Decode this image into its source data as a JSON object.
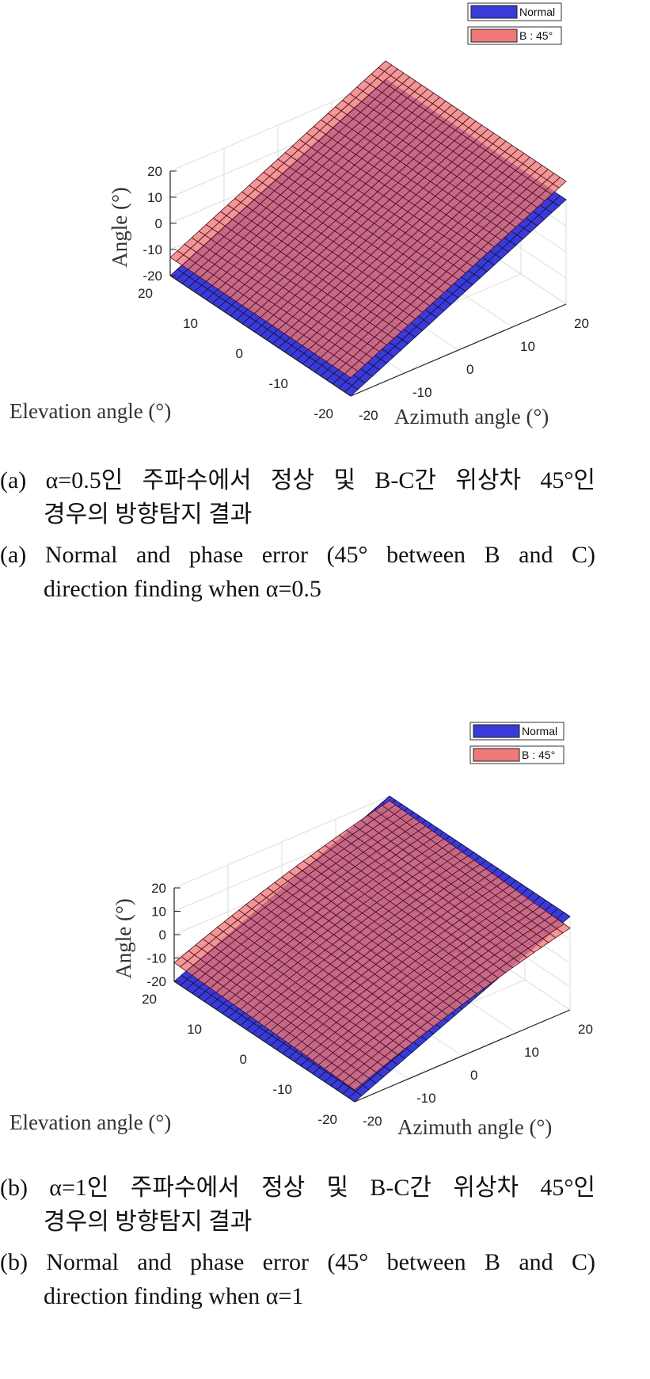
{
  "figure": {
    "chart_data": [
      {
        "type": "surface3d",
        "panel": "a",
        "zlabel": "Angle (°)",
        "xlabel": "Azimuth angle (°)",
        "ylabel": "Elevation angle (°)",
        "zticks": [
          "20",
          "10",
          "0",
          "-10",
          "-20"
        ],
        "xticks": [
          "-20",
          "-10",
          "0",
          "10",
          "20"
        ],
        "yticks": [
          "20",
          "10",
          "0",
          "-10",
          "-20"
        ],
        "xlim": [
          -20,
          20
        ],
        "ylim": [
          -20,
          20
        ],
        "zlim": [
          -20,
          20
        ],
        "grid": true,
        "legend_position": "top-right",
        "series": [
          {
            "name": "Normal",
            "color": "#3a3ad8",
            "model": "angle = azimuth",
            "z_at_corners": {
              "az-20_el20": -20,
              "az20_el20": 20,
              "az-20_el-20": -20,
              "az20_el-20": 20
            }
          },
          {
            "name": "B : 45°",
            "color": "#ef7878",
            "model": "angle ≈ azimuth + 7",
            "z_at_corners": {
              "az-20_el20": -13,
              "az20_el20": 27,
              "az-20_el-20": -13,
              "az20_el-20": 27
            }
          }
        ],
        "caption_ko": {
          "label": "(a)",
          "line1": "α=0.5인 주파수에서 정상 및 B-C간 위상차 45°인",
          "line2": "경우의 방향탐지 결과"
        },
        "caption_en": {
          "label": "(a)",
          "line1": "Normal and phase error (45° between B and C)",
          "line2": "direction finding when α=0.5"
        }
      },
      {
        "type": "surface3d",
        "panel": "b",
        "zlabel": "Angle (°)",
        "xlabel": "Azimuth angle (°)",
        "ylabel": "Elevation angle (°)",
        "zticks": [
          "20",
          "10",
          "0",
          "-10",
          "-20"
        ],
        "xticks": [
          "-20",
          "-10",
          "0",
          "10",
          "20"
        ],
        "yticks": [
          "20",
          "10",
          "0",
          "-10",
          "-20"
        ],
        "xlim": [
          -20,
          20
        ],
        "ylim": [
          -20,
          20
        ],
        "zlim": [
          -20,
          20
        ],
        "grid": true,
        "legend_position": "top-right",
        "series": [
          {
            "name": "Normal",
            "color": "#3a3ad8",
            "model": "angle = azimuth",
            "z_at_corners": {
              "az-20_el20": -20,
              "az20_el20": 20,
              "az-20_el-20": -20,
              "az20_el-20": 20
            }
          },
          {
            "name": "B : 45°",
            "color": "#ef7878",
            "model": "curved surface offset above Normal",
            "z_at_corners": {
              "az-20_el20": -14,
              "az20_el20": 23,
              "az-20_el-20": -17,
              "az20_el-20": 22
            }
          }
        ],
        "caption_ko": {
          "label": "(b)",
          "line1": "α=1인 주파수에서 정상 및 B-C간 위상차 45°인",
          "line2": "경우의 방향탐지 결과"
        },
        "caption_en": {
          "label": "(b)",
          "line1": "Normal and phase error (45° between B and C)",
          "line2": "direction finding when α=1"
        }
      }
    ]
  }
}
